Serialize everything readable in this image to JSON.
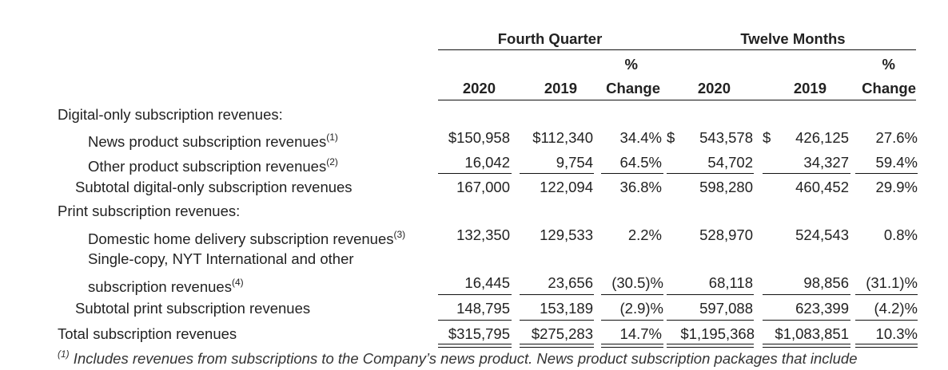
{
  "headers": {
    "group_q": "Fourth Quarter",
    "group_y": "Twelve Months",
    "pct_top": "%",
    "change": "Change",
    "y2020": "2020",
    "y2019": "2019"
  },
  "rows": [
    {
      "label": "Digital-only subscription revenues:",
      "sup": "",
      "q20": "",
      "q19": "",
      "qp": "",
      "y20": "",
      "y19": "",
      "yp": ""
    },
    {
      "label": "News product subscription revenues",
      "sup": "(1)",
      "q20": "$150,958",
      "q19": "$112,340",
      "qp": "34.4%",
      "y20pre": "$",
      "y20": "543,578",
      "y19pre": "$",
      "y19": "426,125",
      "yp": "27.6%"
    },
    {
      "label": "Other product subscription revenues",
      "sup": "(2)",
      "q20": "16,042",
      "q19": "9,754",
      "qp": "64.5%",
      "y20": "54,702",
      "y19": "34,327",
      "yp": "59.4%"
    },
    {
      "label": "Subtotal digital-only subscription revenues",
      "sup": "",
      "q20": "167,000",
      "q19": "122,094",
      "qp": "36.8%",
      "y20": "598,280",
      "y19": "460,452",
      "yp": "29.9%"
    },
    {
      "label": "Print subscription revenues:",
      "sup": "",
      "q20": "",
      "q19": "",
      "qp": "",
      "y20": "",
      "y19": "",
      "yp": ""
    },
    {
      "label": "Domestic home delivery subscription revenues",
      "sup": "(3)",
      "q20": "132,350",
      "q19": "129,533",
      "qp": "2.2%",
      "y20": "528,970",
      "y19": "524,543",
      "yp": "0.8%"
    },
    {
      "label": "Single-copy, NYT International and other",
      "sup": "",
      "q20": "",
      "q19": "",
      "qp": "",
      "y20": "",
      "y19": "",
      "yp": ""
    },
    {
      "label": "subscription revenues",
      "sup": "(4)",
      "q20": "16,445",
      "q19": "23,656",
      "qp": "(30.5)%",
      "y20": "68,118",
      "y19": "98,856",
      "yp": "(31.1)%"
    },
    {
      "label": "Subtotal print subscription revenues",
      "sup": "",
      "q20": "148,795",
      "q19": "153,189",
      "qp": "(2.9)%",
      "y20": "597,088",
      "y19": "623,399",
      "yp": "(4.2)%"
    },
    {
      "label": "Total subscription revenues",
      "sup": "",
      "q20": "$315,795",
      "q19": "$275,283",
      "qp": "14.7%",
      "y20": "$1,195,368",
      "y19": "$1,083,851",
      "yp": "10.3%"
    }
  ],
  "footnote": {
    "marker": "(1)",
    "text": " Includes revenues from subscriptions to the Company’s news product. News product subscription packages that include"
  }
}
